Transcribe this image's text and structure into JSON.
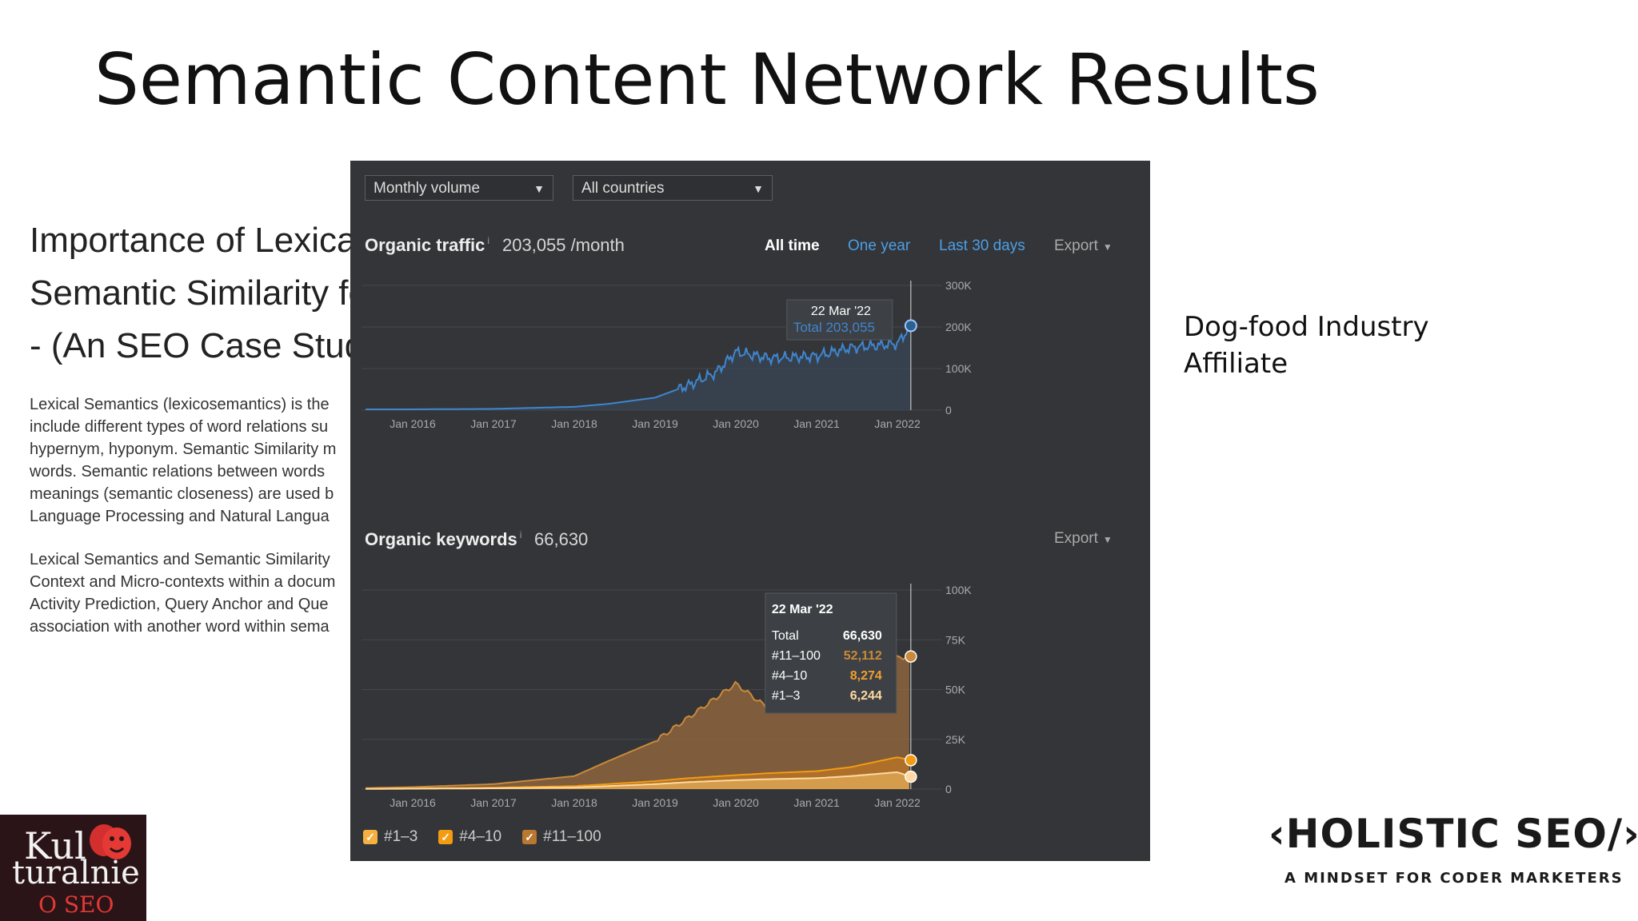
{
  "slide": {
    "title": "Semantic Content Network Results",
    "caption": "Dog-food Industry Affiliate"
  },
  "article": {
    "title_lines": [
      "Importance of Lexical Semantics and",
      "Semantic Similarity for SEO",
      "- (An SEO Case Study)"
    ],
    "para1": [
      "Lexical Semantics (lexicosemantics) is the",
      "include different types of word relations su",
      "hypernym, hyponym. Semantic Similarity m",
      "words. Semantic relations between words",
      "meanings (semantic closeness) are used b",
      "Language Processing and Natural Langua"
    ],
    "para2": [
      "Lexical Semantics and Semantic Similarity",
      "Context and Micro-contexts within a docum",
      "Activity Prediction, Query Anchor and Que",
      "association with another word within sema"
    ]
  },
  "panel": {
    "dropdown_volume": "Monthly volume",
    "dropdown_country": "All countries",
    "traffic": {
      "label": "Organic traffic",
      "info": "i",
      "value": "203,055 /month",
      "ranges": [
        "All time",
        "One year",
        "Last 30 days"
      ],
      "active_range": "All time",
      "export": "Export",
      "y_ticks": [
        "300K",
        "200K",
        "100K",
        "0"
      ],
      "tooltip_date": "22 Mar '22",
      "tooltip_total": "Total 203,055"
    },
    "keywords": {
      "label": "Organic keywords",
      "info": "i",
      "value": "66,630",
      "export": "Export",
      "y_ticks": [
        "100K",
        "75K",
        "50K",
        "25K",
        "0"
      ],
      "tooltip_date": "22 Mar '22",
      "tooltip_rows": [
        {
          "label": "Total",
          "value": "66,630",
          "color": "#ffffff"
        },
        {
          "label": "#11–100",
          "value": "52,112",
          "color": "#c98a3a"
        },
        {
          "label": "#4–10",
          "value": "8,274",
          "color": "#f0a030"
        },
        {
          "label": "#1–3",
          "value": "6,244",
          "color": "#ffd9a0"
        }
      ]
    },
    "x_ticks": [
      "Jan 2016",
      "Jan 2017",
      "Jan 2018",
      "Jan 2019",
      "Jan 2020",
      "Jan 2021",
      "Jan 2022"
    ],
    "legend": [
      {
        "label": "#1–3",
        "color": "#f5b041"
      },
      {
        "label": "#4–10",
        "color": "#f39c12"
      },
      {
        "label": "#11–100",
        "color": "#b9772f"
      }
    ]
  },
  "chart_data": [
    {
      "type": "area",
      "title": "Organic traffic",
      "x": [
        "2015-06",
        "2016-01",
        "2017-01",
        "2018-01",
        "2018-06",
        "2019-01",
        "2019-06",
        "2019-10",
        "2020-01",
        "2020-06",
        "2021-01",
        "2021-06",
        "2022-01",
        "2022-03"
      ],
      "values": [
        2000,
        2000,
        3000,
        8000,
        15000,
        30000,
        60000,
        90000,
        140000,
        125000,
        130000,
        150000,
        160000,
        203055
      ],
      "ylim": [
        0,
        300000
      ],
      "color": "#4a90d9"
    },
    {
      "type": "area",
      "title": "Organic keywords",
      "x": [
        "2015-06",
        "2016-01",
        "2017-01",
        "2018-01",
        "2018-06",
        "2019-01",
        "2019-06",
        "2020-01",
        "2020-06",
        "2021-01",
        "2021-06",
        "2022-01",
        "2022-03"
      ],
      "series": [
        {
          "name": "#11–100",
          "values": [
            500,
            1000,
            2500,
            6500,
            14000,
            24000,
            36000,
            53000,
            40000,
            43000,
            45000,
            66000,
            66630
          ]
        },
        {
          "name": "#4–10",
          "values": [
            200,
            300,
            700,
            1500,
            2500,
            4000,
            5500,
            7000,
            8000,
            9000,
            11000,
            16000,
            14518
          ]
        },
        {
          "name": "#1–3",
          "values": [
            100,
            200,
            400,
            800,
            1500,
            2500,
            3500,
            4500,
            5000,
            5500,
            6500,
            8500,
            6244
          ]
        }
      ],
      "ylim": [
        0,
        100000
      ]
    }
  ],
  "brand": {
    "name": "‹HOLISTIC SEO/›",
    "tagline": "A MINDSET FOR CODER MARKETERS",
    "left_logo": [
      "Kul",
      "turalnie",
      "O SEO"
    ]
  }
}
